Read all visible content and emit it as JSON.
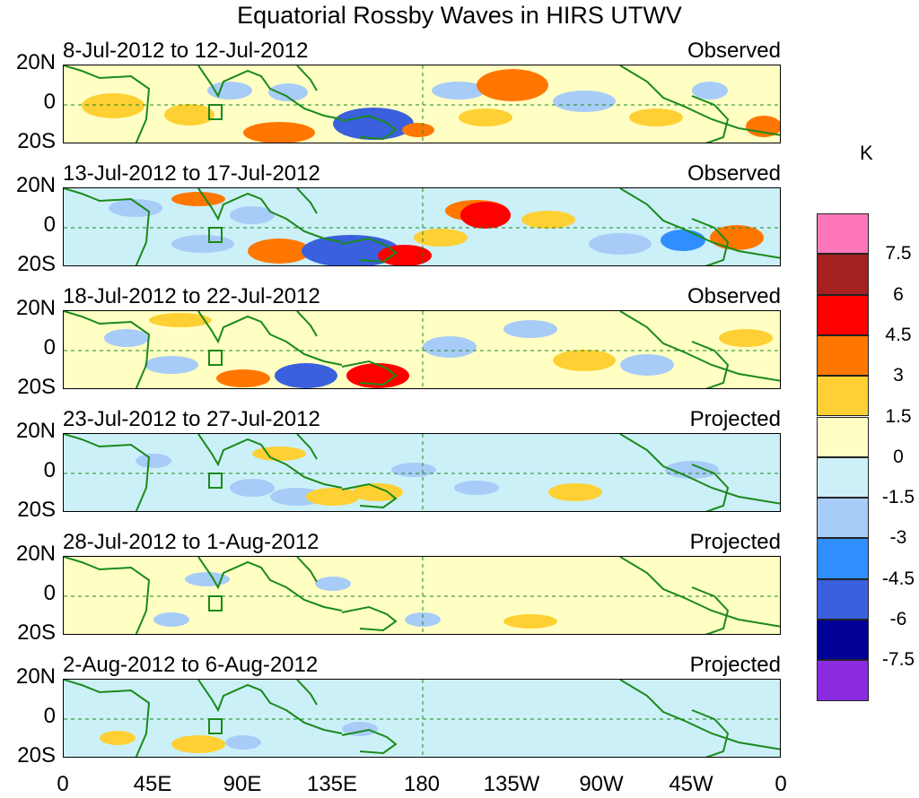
{
  "title": "Equatorial Rossby Waves in HIRS UTWV",
  "panels": [
    {
      "date_range": "8-Jul-2012 to 12-Jul-2012",
      "status": "Observed"
    },
    {
      "date_range": "13-Jul-2012 to 17-Jul-2012",
      "status": "Observed"
    },
    {
      "date_range": "18-Jul-2012 to 22-Jul-2012",
      "status": "Observed"
    },
    {
      "date_range": "23-Jul-2012 to 27-Jul-2012",
      "status": "Projected"
    },
    {
      "date_range": "28-Jul-2012 to 1-Aug-2012",
      "status": "Projected"
    },
    {
      "date_range": "2-Aug-2012 to 6-Aug-2012",
      "status": "Projected"
    }
  ],
  "lat_labels": [
    "20N",
    "0",
    "20S"
  ],
  "lon_labels": [
    "0",
    "45E",
    "90E",
    "135E",
    "180",
    "135W",
    "90W",
    "45W",
    "0"
  ],
  "colorbar": {
    "unit": "K",
    "labels": [
      "7.5",
      "6",
      "4.5",
      "3",
      "1.5",
      "0",
      "-1.5",
      "-3",
      "-4.5",
      "-6",
      "-7.5"
    ],
    "colors": [
      "#ff77bb",
      "#a52020",
      "#ff0000",
      "#ff7700",
      "#ffd033",
      "#ffffc4",
      "#ccf0f8",
      "#a8ccf8",
      "#2f8fff",
      "#3a60dd",
      "#000096",
      "#8a2be2"
    ]
  }
}
